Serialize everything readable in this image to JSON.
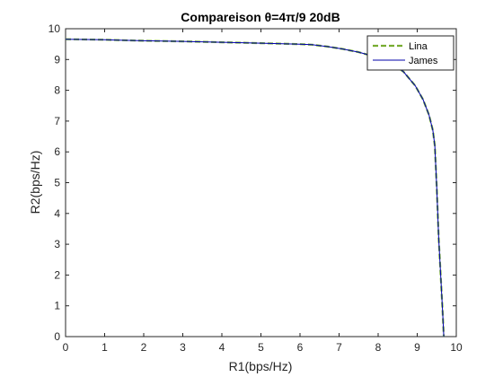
{
  "chart_data": {
    "type": "line",
    "title": "Compareison θ=4π/9 20dB",
    "xlabel": "R1(bps/Hz)",
    "ylabel": "R2(bps/Hz)",
    "xlim": [
      0,
      10
    ],
    "ylim": [
      0,
      10
    ],
    "xticks": [
      0,
      1,
      2,
      3,
      4,
      5,
      6,
      7,
      8,
      9,
      10
    ],
    "yticks": [
      0,
      1,
      2,
      3,
      4,
      5,
      6,
      7,
      8,
      9,
      10
    ],
    "grid": false,
    "legend_position": "top-right",
    "series": [
      {
        "name": "Lina",
        "color": "#77ac30",
        "style": "dashed",
        "x": [
          0,
          1,
          2,
          3,
          4,
          5,
          6,
          6.3,
          6.7,
          7.1,
          7.5,
          7.9,
          8.3,
          8.65,
          8.95,
          9.15,
          9.3,
          9.4,
          9.45,
          9.5,
          9.55,
          9.6,
          9.65,
          9.68
        ],
        "y": [
          9.66,
          9.64,
          9.61,
          9.59,
          9.56,
          9.53,
          9.5,
          9.48,
          9.42,
          9.34,
          9.24,
          9.1,
          8.92,
          8.6,
          8.15,
          7.7,
          7.2,
          6.7,
          6.2,
          4.8,
          3.2,
          2.0,
          0.8,
          0
        ]
      },
      {
        "name": "James",
        "color": "#0000aa",
        "style": "solid",
        "x": [
          0,
          1,
          2,
          3,
          4,
          5,
          6,
          6.3,
          6.7,
          7.1,
          7.5,
          7.9,
          8.3,
          8.65,
          8.95,
          9.15,
          9.3,
          9.4,
          9.45,
          9.5,
          9.55,
          9.6,
          9.65,
          9.68
        ],
        "y": [
          9.66,
          9.64,
          9.61,
          9.59,
          9.56,
          9.53,
          9.5,
          9.48,
          9.42,
          9.34,
          9.24,
          9.1,
          8.92,
          8.6,
          8.15,
          7.7,
          7.2,
          6.7,
          6.2,
          4.8,
          3.2,
          2.0,
          0.8,
          0
        ]
      }
    ]
  }
}
